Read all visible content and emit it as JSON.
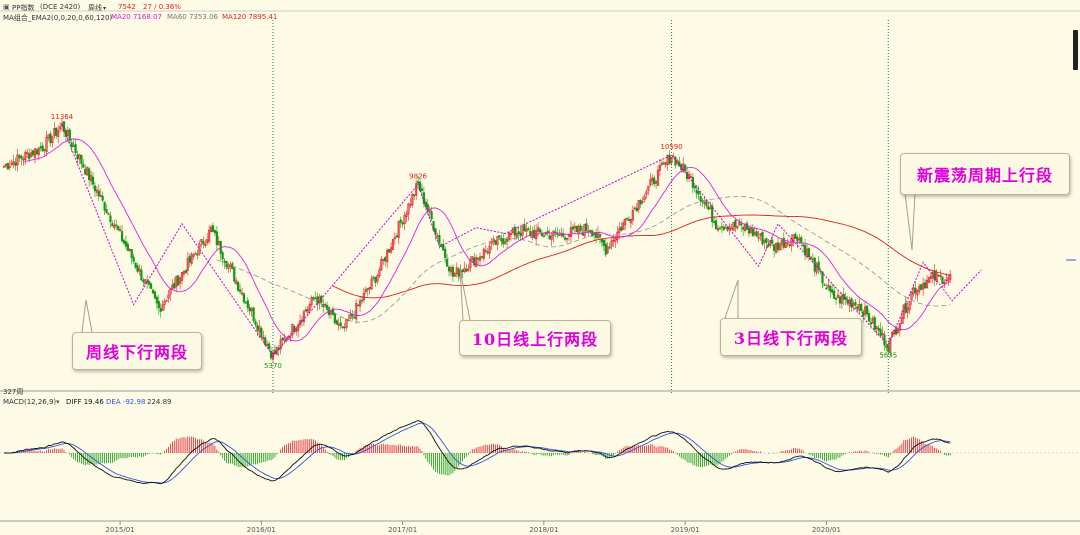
{
  "toolbar": {
    "symbol": "PP指数",
    "exchange_code": "(DCE 2420)",
    "period": "周线",
    "price": "7542",
    "change": "27 / 0.36%"
  },
  "indicator_header": {
    "name": "MA组合_EMA2(0,0,20,0,60,120)",
    "ma20": "MA20 7168.07",
    "ma60": "MA60 7353.06",
    "ma120": "MA120 7895.41"
  },
  "macd_header": {
    "name": "MACD(12,26,9)",
    "diff": "DIFF 19.46",
    "dea": "DEA -92.98",
    "macd": "224.89"
  },
  "panel_label": "327周",
  "callouts": {
    "weekly": "周线下行两段",
    "ten_day": "10日线上行两段",
    "three_day": "3日线下行两段",
    "new_cycle": "新震荡周期上行段"
  },
  "chart_data": {
    "type": "candlestick",
    "x_ticks": [
      "2015/01",
      "2016/01",
      "2017/01",
      "2018/01",
      "2019/01",
      "2020/01"
    ],
    "colors": {
      "up": "#e0202a",
      "down": "#119911",
      "ma20": "#e020e0",
      "ma60": "#909090",
      "ma120": "#dd2020",
      "annotation_line": "#cc00cc",
      "macd_diff": "#111111",
      "macd_dea": "#3355dd",
      "vertical_marker": "#117777"
    },
    "price_labels": [
      {
        "text": "11364",
        "week": 30,
        "value": 11364,
        "pos": "high"
      },
      {
        "text": "5370",
        "week": 139,
        "value": 5370,
        "pos": "low"
      },
      {
        "text": "9826",
        "week": 214,
        "value": 9826,
        "pos": "high"
      },
      {
        "text": "10590",
        "week": 345,
        "value": 10590,
        "pos": "high"
      },
      {
        "text": "5635",
        "week": 457,
        "value": 5635,
        "pos": "low"
      }
    ],
    "pivot_points": [
      {
        "week": 20,
        "value": 10800
      },
      {
        "week": 30,
        "value": 11364
      },
      {
        "week": 80,
        "value": 6600
      },
      {
        "week": 107,
        "value": 8650
      },
      {
        "week": 139,
        "value": 5370
      },
      {
        "week": 161,
        "value": 6900
      },
      {
        "week": 175,
        "value": 6000
      },
      {
        "week": 193,
        "value": 7500
      },
      {
        "week": 214,
        "value": 9826
      },
      {
        "week": 232,
        "value": 7450
      },
      {
        "week": 254,
        "value": 8300
      },
      {
        "week": 265,
        "value": 8600
      },
      {
        "week": 288,
        "value": 8500
      },
      {
        "week": 303,
        "value": 8700
      },
      {
        "week": 311,
        "value": 8150
      },
      {
        "week": 345,
        "value": 10590
      },
      {
        "week": 356,
        "value": 9900
      },
      {
        "week": 368,
        "value": 8800
      },
      {
        "week": 383,
        "value": 8700
      },
      {
        "week": 398,
        "value": 8200
      },
      {
        "week": 410,
        "value": 8500
      },
      {
        "week": 428,
        "value": 6900
      },
      {
        "week": 442,
        "value": 6700
      },
      {
        "week": 457,
        "value": 5635
      },
      {
        "week": 470,
        "value": 7100
      },
      {
        "week": 480,
        "value": 7400
      }
    ],
    "zigzag_lines": [
      [
        {
          "week": 30,
          "value": 11364
        },
        {
          "week": 67,
          "value": 6700
        },
        {
          "week": 92,
          "value": 8800
        },
        {
          "week": 139,
          "value": 5370
        }
      ],
      [
        {
          "week": 139,
          "value": 5370
        },
        {
          "week": 214,
          "value": 9826
        },
        {
          "week": 225,
          "value": 8200
        },
        {
          "week": 244,
          "value": 8700
        },
        {
          "week": 259,
          "value": 8550
        },
        {
          "week": 345,
          "value": 10590
        }
      ],
      [
        {
          "week": 345,
          "value": 10590
        },
        {
          "week": 390,
          "value": 7700
        },
        {
          "week": 400,
          "value": 8800
        },
        {
          "week": 457,
          "value": 5635
        },
        {
          "week": 475,
          "value": 7800
        },
        {
          "week": 490,
          "value": 6800
        },
        {
          "week": 505,
          "value": 7600
        }
      ]
    ],
    "vertical_markers": [
      {
        "week": 139
      },
      {
        "week": 345
      },
      {
        "week": 457
      }
    ]
  }
}
